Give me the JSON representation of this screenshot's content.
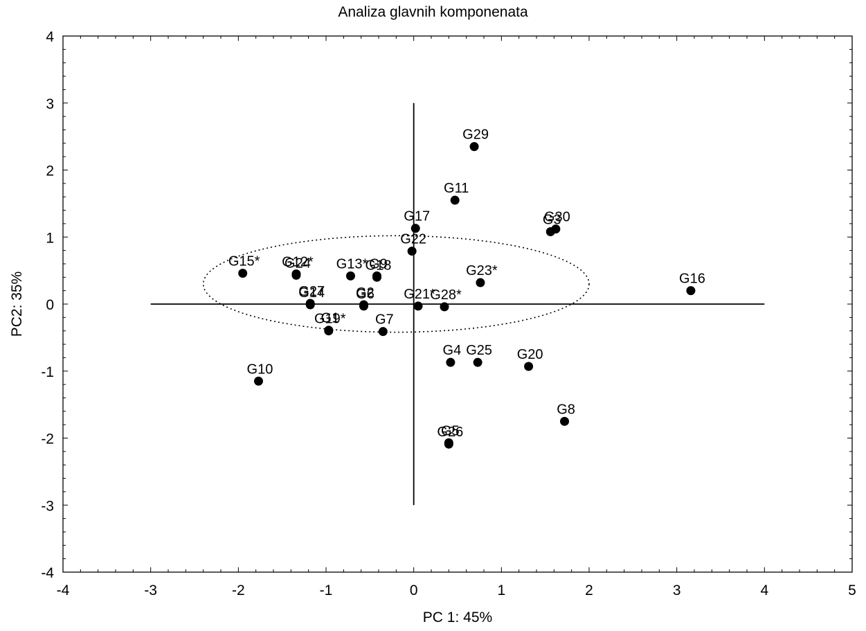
{
  "chart_data": {
    "type": "scatter",
    "title": "Analiza glavnih komponenata",
    "xlabel": "PC 1: 45%",
    "ylabel": "PC2: 35%",
    "xlim": [
      -4,
      5
    ],
    "ylim": [
      -4,
      4
    ],
    "xticks": [
      "-4",
      "-3",
      "-2",
      "-1",
      "0",
      "1",
      "2",
      "3",
      "4",
      "5"
    ],
    "yticks": [
      "-4",
      "-3",
      "-2",
      "-1",
      "0",
      "1",
      "2",
      "3",
      "4"
    ],
    "grid": false,
    "reference_lines": [
      {
        "orientation": "horizontal",
        "y": 0,
        "from": -3,
        "to": 4
      },
      {
        "orientation": "vertical",
        "x": 0,
        "from": -3,
        "to": 3
      }
    ],
    "ellipse": {
      "cx": -0.2,
      "cy": 0.3,
      "rx": 2.2,
      "ry": 0.72,
      "style": "dotted"
    },
    "points": [
      {
        "label": "G29",
        "x": 0.69,
        "y": 2.35
      },
      {
        "label": "G11",
        "x": 0.47,
        "y": 1.55
      },
      {
        "label": "G17",
        "x": 0.02,
        "y": 1.13
      },
      {
        "label": "G22",
        "x": -0.02,
        "y": 0.79
      },
      {
        "label": "G30",
        "x": 1.62,
        "y": 1.12
      },
      {
        "label": "G3",
        "x": 1.56,
        "y": 1.08
      },
      {
        "label": "G15*",
        "x": -1.95,
        "y": 0.46
      },
      {
        "label": "G12*",
        "x": -1.34,
        "y": 0.45
      },
      {
        "label": "G24",
        "x": -1.34,
        "y": 0.43
      },
      {
        "label": "G13*",
        "x": -0.72,
        "y": 0.42
      },
      {
        "label": "G9",
        "x": -0.42,
        "y": 0.42
      },
      {
        "label": "G18",
        "x": -0.42,
        "y": 0.4
      },
      {
        "label": "G23*",
        "x": 0.76,
        "y": 0.32
      },
      {
        "label": "G16",
        "x": 3.16,
        "y": 0.2
      },
      {
        "label": "G27",
        "x": -1.18,
        "y": 0.01
      },
      {
        "label": "G14",
        "x": -1.18,
        "y": -0.01
      },
      {
        "label": "G2",
        "x": -0.57,
        "y": -0.01
      },
      {
        "label": "G6",
        "x": -0.57,
        "y": -0.03
      },
      {
        "label": "G21*",
        "x": 0.05,
        "y": -0.03
      },
      {
        "label": "G28*",
        "x": 0.35,
        "y": -0.04
      },
      {
        "label": "G1",
        "x": -0.97,
        "y": -0.39
      },
      {
        "label": "G19*",
        "x": -0.97,
        "y": -0.4
      },
      {
        "label": "G7",
        "x": -0.35,
        "y": -0.41
      },
      {
        "label": "G4",
        "x": 0.42,
        "y": -0.87
      },
      {
        "label": "G25",
        "x": 0.73,
        "y": -0.87
      },
      {
        "label": "G20",
        "x": 1.31,
        "y": -0.93
      },
      {
        "label": "G10",
        "x": -1.77,
        "y": -1.15
      },
      {
        "label": "G8",
        "x": 1.72,
        "y": -1.75
      },
      {
        "label": "G5",
        "x": 0.4,
        "y": -2.07
      },
      {
        "label": "G26",
        "x": 0.4,
        "y": -2.09
      }
    ]
  }
}
